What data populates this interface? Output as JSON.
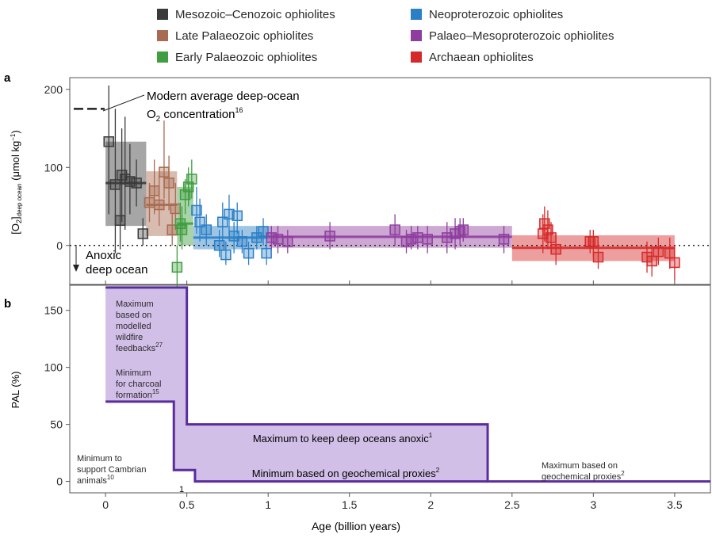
{
  "chart_data": [
    {
      "panel_label": "a",
      "type": "scatter",
      "x_domain": [
        -0.22,
        3.72
      ],
      "ylim": [
        -50,
        215
      ],
      "y_ticks": [
        0,
        100,
        200
      ],
      "y_tick_labels": [
        "0",
        "100",
        "200"
      ],
      "ylabel_main": "[O",
      "ylabel_sub2": "2",
      "ylabel_bracket": "]",
      "ylabel_subscript": "deep ocean",
      "ylabel_units": " (μmol kg",
      "ylabel_units_sup": "−1",
      "ylabel_units_close": ")",
      "legend_position": "top",
      "legend": [
        {
          "label": "Mesozoic–Cenozoic ophiolites",
          "color": "#3a3a3a"
        },
        {
          "label": "Neoproterozoic ophiolites",
          "color": "#2a7fc6"
        },
        {
          "label": "Late Palaeozoic ophiolites",
          "color": "#a86a50"
        },
        {
          "label": "Palaeo–Mesoproterozoic ophiolites",
          "color": "#8e3d9e"
        },
        {
          "label": "Early Palaeozoic ophiolites",
          "color": "#3f9e3f"
        },
        {
          "label": "Archaean ophiolites",
          "color": "#d62a2a"
        }
      ],
      "annotation_modern_line1": "Modern average deep-ocean",
      "annotation_modern_line2a": "O",
      "annotation_modern_sub": "2",
      "annotation_modern_line2b": " concentration",
      "annotation_modern_sup": "16",
      "modern_value": 175,
      "annotation_anoxic_line1": "Anoxic",
      "annotation_anoxic_line2": "deep ocean",
      "zero_line": 0,
      "bands": [
        {
          "group": "Mesozoic–Cenozoic",
          "x0": 0.0,
          "x1": 0.25,
          "y0": 25,
          "y1": 133,
          "mean": 80,
          "color": "#3a3a3a"
        },
        {
          "group": "Late Palaeozoic",
          "x0": 0.25,
          "x1": 0.44,
          "y0": 12,
          "y1": 95,
          "mean": 52,
          "color": "#a86a50"
        },
        {
          "group": "Early Palaeozoic",
          "x0": 0.44,
          "x1": 0.54,
          "y0": 0,
          "y1": 75,
          "mean": 28,
          "color": "#3f9e3f"
        },
        {
          "group": "Neoproterozoic",
          "x0": 0.54,
          "x1": 1.0,
          "y0": -5,
          "y1": 25,
          "mean": 10,
          "color": "#2a7fc6"
        },
        {
          "group": "Palaeo–Mesoproterozoic",
          "x0": 1.0,
          "x1": 2.5,
          "y0": -3,
          "y1": 25,
          "mean": 11,
          "color": "#8e3d9e"
        },
        {
          "group": "Archaean",
          "x0": 2.5,
          "x1": 3.5,
          "y0": -20,
          "y1": 13,
          "mean": -3,
          "color": "#d62a2a"
        }
      ],
      "series": [
        {
          "name": "Mesozoic–Cenozoic ophiolites",
          "color": "#3a3a3a",
          "points": [
            {
              "x": 0.02,
              "y": 133,
              "lo": 40,
              "hi": 205
            },
            {
              "x": 0.06,
              "y": 78,
              "lo": -10,
              "hi": 175
            },
            {
              "x": 0.09,
              "y": 32,
              "lo": -5,
              "hi": 80
            },
            {
              "x": 0.1,
              "y": 90,
              "lo": 30,
              "hi": 150
            },
            {
              "x": 0.12,
              "y": 85,
              "lo": 20,
              "hi": 165
            },
            {
              "x": 0.15,
              "y": 82,
              "lo": 40,
              "hi": 130
            },
            {
              "x": 0.19,
              "y": 80,
              "lo": 50,
              "hi": 110
            },
            {
              "x": 0.23,
              "y": 15,
              "lo": 0,
              "hi": 35
            }
          ]
        },
        {
          "name": "Late Palaeozoic ophiolites",
          "color": "#a86a50",
          "points": [
            {
              "x": 0.27,
              "y": 55,
              "lo": 30,
              "hi": 80
            },
            {
              "x": 0.3,
              "y": 70,
              "lo": 40,
              "hi": 110
            },
            {
              "x": 0.33,
              "y": 52,
              "lo": 25,
              "hi": 90
            },
            {
              "x": 0.36,
              "y": 94,
              "lo": 60,
              "hi": 160
            },
            {
              "x": 0.39,
              "y": 80,
              "lo": 45,
              "hi": 115
            },
            {
              "x": 0.41,
              "y": 20,
              "lo": 0,
              "hi": 40
            },
            {
              "x": 0.43,
              "y": 47,
              "lo": 20,
              "hi": 80
            }
          ]
        },
        {
          "name": "Early Palaeozoic ophiolites",
          "color": "#3f9e3f",
          "points": [
            {
              "x": 0.44,
              "y": -28,
              "lo": -55,
              "hi": 0
            },
            {
              "x": 0.46,
              "y": 28,
              "lo": 5,
              "hi": 55
            },
            {
              "x": 0.47,
              "y": 20,
              "lo": -5,
              "hi": 50
            },
            {
              "x": 0.49,
              "y": 65,
              "lo": 40,
              "hi": 85
            },
            {
              "x": 0.51,
              "y": 75,
              "lo": 50,
              "hi": 100
            },
            {
              "x": 0.53,
              "y": 85,
              "lo": 60,
              "hi": 110
            }
          ]
        },
        {
          "name": "Neoproterozoic ophiolites",
          "color": "#2a7fc6",
          "points": [
            {
              "x": 0.56,
              "y": 45,
              "lo": 15,
              "hi": 75
            },
            {
              "x": 0.58,
              "y": 30,
              "lo": 5,
              "hi": 60
            },
            {
              "x": 0.62,
              "y": 20,
              "lo": 0,
              "hi": 40
            },
            {
              "x": 0.7,
              "y": 0,
              "lo": -15,
              "hi": 20
            },
            {
              "x": 0.72,
              "y": 30,
              "lo": 5,
              "hi": 55
            },
            {
              "x": 0.74,
              "y": -12,
              "lo": -25,
              "hi": 5
            },
            {
              "x": 0.76,
              "y": 40,
              "lo": 15,
              "hi": 65
            },
            {
              "x": 0.79,
              "y": 12,
              "lo": -10,
              "hi": 30
            },
            {
              "x": 0.81,
              "y": 38,
              "lo": 15,
              "hi": 55
            },
            {
              "x": 0.84,
              "y": 5,
              "lo": -10,
              "hi": 20
            },
            {
              "x": 0.88,
              "y": -10,
              "lo": -25,
              "hi": 5
            },
            {
              "x": 0.93,
              "y": 10,
              "lo": -5,
              "hi": 25
            },
            {
              "x": 0.97,
              "y": 18,
              "lo": 0,
              "hi": 35
            },
            {
              "x": 0.99,
              "y": -10,
              "lo": -25,
              "hi": 5
            }
          ]
        },
        {
          "name": "Palaeo–Mesoproterozoic ophiolites",
          "color": "#8e3d9e",
          "points": [
            {
              "x": 1.02,
              "y": 10,
              "lo": -5,
              "hi": 25
            },
            {
              "x": 1.06,
              "y": 8,
              "lo": -10,
              "hi": 25
            },
            {
              "x": 1.12,
              "y": 5,
              "lo": -10,
              "hi": 20
            },
            {
              "x": 1.38,
              "y": 12,
              "lo": -5,
              "hi": 30
            },
            {
              "x": 1.78,
              "y": 20,
              "lo": 0,
              "hi": 40
            },
            {
              "x": 1.85,
              "y": 5,
              "lo": -10,
              "hi": 20
            },
            {
              "x": 1.88,
              "y": 8,
              "lo": -5,
              "hi": 25
            },
            {
              "x": 1.92,
              "y": 10,
              "lo": -5,
              "hi": 25
            },
            {
              "x": 1.98,
              "y": 8,
              "lo": -10,
              "hi": 25
            },
            {
              "x": 2.1,
              "y": 10,
              "lo": -10,
              "hi": 30
            },
            {
              "x": 2.15,
              "y": 15,
              "lo": -5,
              "hi": 35
            },
            {
              "x": 2.18,
              "y": 18,
              "lo": 0,
              "hi": 35
            },
            {
              "x": 2.2,
              "y": 20,
              "lo": 5,
              "hi": 35
            },
            {
              "x": 2.45,
              "y": 8,
              "lo": -10,
              "hi": 25
            }
          ]
        },
        {
          "name": "Archaean ophiolites",
          "color": "#d62a2a",
          "points": [
            {
              "x": 2.69,
              "y": 15,
              "lo": -10,
              "hi": 40
            },
            {
              "x": 2.7,
              "y": 28,
              "lo": 5,
              "hi": 50
            },
            {
              "x": 2.72,
              "y": 20,
              "lo": -5,
              "hi": 45
            },
            {
              "x": 2.74,
              "y": 10,
              "lo": -10,
              "hi": 30
            },
            {
              "x": 2.77,
              "y": -5,
              "lo": -25,
              "hi": 15
            },
            {
              "x": 2.98,
              "y": 5,
              "lo": -10,
              "hi": 20
            },
            {
              "x": 3.0,
              "y": 5,
              "lo": -15,
              "hi": 20
            },
            {
              "x": 3.03,
              "y": -15,
              "lo": -30,
              "hi": 5
            },
            {
              "x": 3.33,
              "y": -15,
              "lo": -35,
              "hi": 5
            },
            {
              "x": 3.36,
              "y": -20,
              "lo": -40,
              "hi": 0
            },
            {
              "x": 3.4,
              "y": -8,
              "lo": -25,
              "hi": 10
            },
            {
              "x": 3.47,
              "y": -10,
              "lo": -30,
              "hi": 10
            },
            {
              "x": 3.5,
              "y": -22,
              "lo": -45,
              "hi": 0
            }
          ]
        }
      ]
    },
    {
      "panel_label": "b",
      "type": "area",
      "x_domain": [
        -0.22,
        3.72
      ],
      "ylim": [
        -10,
        172
      ],
      "y_ticks": [
        0,
        50,
        100,
        150
      ],
      "y_tick_labels": [
        "0",
        "50",
        "100",
        "150"
      ],
      "ylabel": "PAL (%)",
      "xlabel": "Age (billion years)",
      "x_ticks": [
        0,
        0.5,
        1,
        1.5,
        2,
        2.5,
        3,
        3.5
      ],
      "x_tick_labels": [
        "0",
        "0.5",
        "1",
        "1.5",
        "2",
        "2.5",
        "3",
        "3.5"
      ],
      "max_envelope": [
        {
          "x": 0.0,
          "y": 170
        },
        {
          "x": 0.5,
          "y": 170
        },
        {
          "x": 0.5,
          "y": 50
        },
        {
          "x": 2.35,
          "y": 50
        },
        {
          "x": 2.35,
          "y": 0
        },
        {
          "x": 3.72,
          "y": 0
        }
      ],
      "min_envelope": [
        {
          "x": 0.0,
          "y": 70
        },
        {
          "x": 0.42,
          "y": 70
        },
        {
          "x": 0.42,
          "y": 10
        },
        {
          "x": 0.55,
          "y": 10
        },
        {
          "x": 0.55,
          "y": 0
        },
        {
          "x": 2.35,
          "y": 0
        }
      ],
      "fill_color": "#cdb8e6",
      "line_color": "#5a2d9c",
      "annotations": {
        "max_wildfire": [
          "Maximum",
          "based on",
          "modelled",
          "wildfire",
          "feedbacks"
        ],
        "max_wildfire_ref": "27",
        "min_charcoal": [
          "Minimum",
          "for charcoal",
          "formation"
        ],
        "min_charcoal_ref": "15",
        "max_anoxic": "Maximum to keep deep oceans anoxic",
        "max_anoxic_ref": "1",
        "min_geochem": "Minimum based on geochemical proxies",
        "min_geochem_ref": "2",
        "max_geochem": [
          "Maximum based on",
          "geochemical proxies"
        ],
        "max_geochem_ref": "2",
        "min_cambrian": [
          "Minimum to",
          "support Cambrian",
          "animals"
        ],
        "min_cambrian_ref": "10",
        "marker_one": "1"
      }
    }
  ]
}
